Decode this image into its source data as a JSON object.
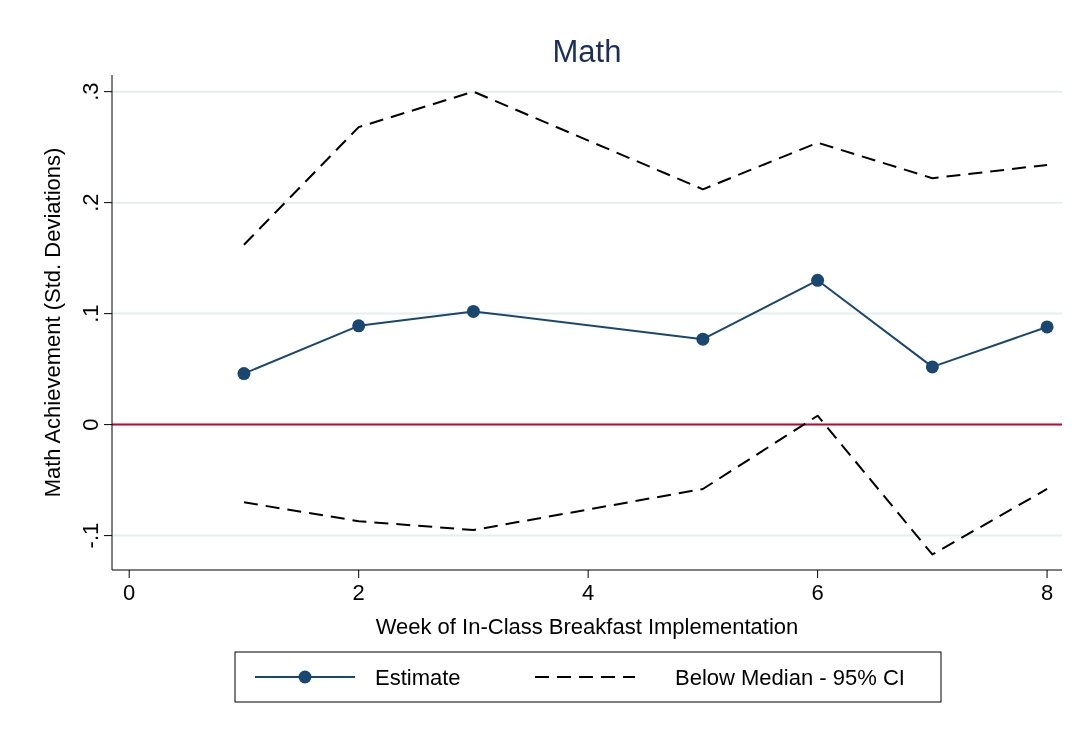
{
  "chart_data": {
    "type": "line",
    "title": "Math",
    "xlabel": "Week of In-Class Breakfast Implementation",
    "ylabel": "Math Achievement (Std. Deviations)",
    "x": [
      1,
      2,
      3,
      5,
      6,
      7,
      8
    ],
    "series": [
      {
        "name": "Estimate",
        "color": "#1a476f",
        "values": [
          0.046,
          0.089,
          0.102,
          0.077,
          0.13,
          0.052,
          0.088
        ],
        "marker": "circle",
        "line_style": "solid"
      },
      {
        "name": "Below Median - 95% CI",
        "color": "#000000",
        "values": [
          0.162,
          0.268,
          0.3,
          0.212,
          0.254,
          0.222,
          0.234
        ],
        "marker": "none",
        "line_style": "dashed"
      },
      {
        "color": "#000000",
        "values": [
          -0.07,
          -0.087,
          -0.095,
          -0.058,
          0.008,
          -0.117,
          -0.058
        ],
        "marker": "none",
        "line_style": "dashed"
      }
    ],
    "xlim": [
      -0.15,
      8.13
    ],
    "ylim": [
      -0.131,
      0.315
    ],
    "xticks": [
      0,
      2,
      4,
      6,
      8
    ],
    "yticks": [
      {
        "value": -0.1,
        "label": "-.1"
      },
      0,
      {
        "value": 0.1,
        "label": ".1"
      },
      {
        "value": 0.2,
        "label": ".2"
      },
      {
        "value": 0.3,
        "label": ".3"
      }
    ],
    "ref_lines": [
      {
        "axis": "y",
        "value": 0,
        "color": "#c10534",
        "line_style": "solid"
      }
    ],
    "grid": "y",
    "legend": "bottom"
  }
}
